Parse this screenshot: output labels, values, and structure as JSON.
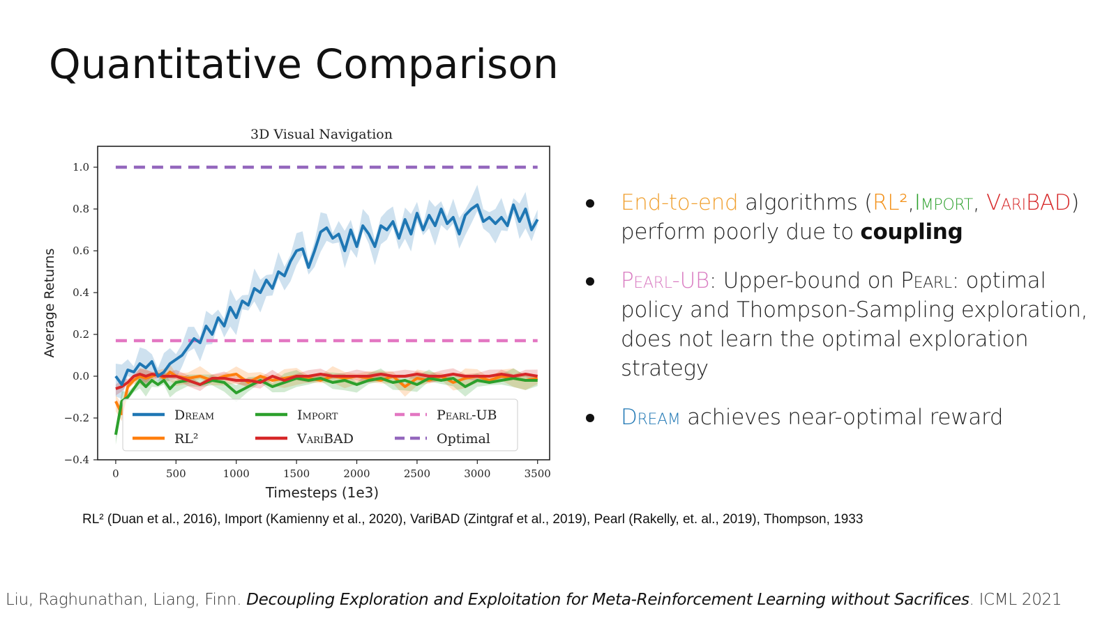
{
  "slide": {
    "title": "Quantitative Comparison"
  },
  "chart_data": {
    "type": "line",
    "title": "3D Visual Navigation",
    "xlabel": "Timesteps (1e3)",
    "ylabel": "Average Returns",
    "xlim": [
      -150,
      3600
    ],
    "ylim": [
      -0.4,
      1.1
    ],
    "xticks": [
      0,
      500,
      1000,
      1500,
      2000,
      2500,
      3000,
      3500
    ],
    "yticks": [
      -0.4,
      -0.2,
      0.0,
      0.2,
      0.4,
      0.6,
      0.8,
      1.0
    ],
    "ytick_labels": [
      "−0.4",
      "−0.2",
      "0.0",
      "0.2",
      "0.4",
      "0.6",
      "0.8",
      "1.0"
    ],
    "grid": false,
    "legend_placement": "lower-center",
    "series": [
      {
        "name": "Dream",
        "color": "#1f77b4",
        "style": "solid",
        "band": 0.06,
        "x": [
          0,
          50,
          100,
          150,
          200,
          250,
          300,
          350,
          400,
          450,
          500,
          550,
          600,
          650,
          700,
          750,
          800,
          850,
          900,
          950,
          1000,
          1050,
          1100,
          1150,
          1200,
          1250,
          1300,
          1350,
          1400,
          1450,
          1500,
          1550,
          1600,
          1650,
          1700,
          1750,
          1800,
          1850,
          1900,
          1950,
          2000,
          2050,
          2100,
          2150,
          2200,
          2250,
          2300,
          2350,
          2400,
          2450,
          2500,
          2550,
          2600,
          2650,
          2700,
          2750,
          2800,
          2850,
          2900,
          2950,
          3000,
          3050,
          3100,
          3150,
          3200,
          3250,
          3300,
          3350,
          3400,
          3450,
          3500
        ],
        "y": [
          0.0,
          -0.04,
          0.03,
          0.02,
          0.06,
          0.04,
          0.07,
          0.0,
          0.02,
          0.06,
          0.08,
          0.1,
          0.14,
          0.18,
          0.16,
          0.24,
          0.2,
          0.28,
          0.24,
          0.33,
          0.28,
          0.36,
          0.34,
          0.42,
          0.4,
          0.46,
          0.42,
          0.5,
          0.48,
          0.55,
          0.6,
          0.61,
          0.52,
          0.6,
          0.69,
          0.71,
          0.66,
          0.68,
          0.6,
          0.7,
          0.62,
          0.72,
          0.68,
          0.62,
          0.72,
          0.7,
          0.74,
          0.66,
          0.75,
          0.68,
          0.78,
          0.7,
          0.77,
          0.72,
          0.8,
          0.73,
          0.76,
          0.68,
          0.77,
          0.8,
          0.82,
          0.74,
          0.76,
          0.73,
          0.76,
          0.72,
          0.82,
          0.74,
          0.8,
          0.7,
          0.75
        ]
      },
      {
        "name": "RL²",
        "color": "#ff7f0e",
        "style": "solid",
        "band": 0.03,
        "x": [
          0,
          50,
          100,
          150,
          200,
          250,
          300,
          350,
          400,
          450,
          500,
          600,
          700,
          800,
          900,
          1000,
          1100,
          1200,
          1300,
          1400,
          1500,
          1600,
          1700,
          1800,
          1900,
          2000,
          2100,
          2200,
          2300,
          2400,
          2500,
          2600,
          2700,
          2800,
          2900,
          3000,
          3100,
          3200,
          3300,
          3400,
          3500
        ],
        "y": [
          -0.12,
          -0.18,
          -0.05,
          -0.02,
          0.0,
          -0.01,
          0.0,
          0.01,
          -0.01,
          0.02,
          0.0,
          -0.01,
          0.0,
          -0.02,
          0.0,
          0.01,
          -0.03,
          0.0,
          -0.02,
          -0.01,
          0.0,
          -0.01,
          -0.02,
          0.0,
          -0.01,
          0.0,
          -0.01,
          -0.02,
          0.0,
          -0.05,
          -0.01,
          -0.02,
          0.0,
          -0.03,
          -0.01,
          0.0,
          -0.02,
          0.0,
          -0.01,
          -0.02,
          -0.01
        ]
      },
      {
        "name": "Import",
        "color": "#2ca02c",
        "style": "solid",
        "band": 0.03,
        "x": [
          0,
          50,
          100,
          150,
          200,
          250,
          300,
          350,
          400,
          450,
          500,
          600,
          700,
          800,
          900,
          1000,
          1100,
          1200,
          1300,
          1400,
          1500,
          1600,
          1700,
          1800,
          1900,
          2000,
          2100,
          2200,
          2300,
          2400,
          2500,
          2600,
          2700,
          2800,
          2900,
          3000,
          3100,
          3200,
          3300,
          3400,
          3500
        ],
        "y": [
          -0.28,
          -0.12,
          -0.1,
          -0.06,
          -0.02,
          -0.05,
          -0.02,
          -0.04,
          -0.02,
          -0.06,
          -0.03,
          -0.02,
          -0.04,
          -0.02,
          -0.03,
          -0.08,
          -0.05,
          -0.02,
          -0.05,
          -0.03,
          -0.01,
          -0.02,
          -0.01,
          -0.03,
          -0.02,
          -0.04,
          -0.02,
          -0.01,
          -0.03,
          -0.02,
          -0.04,
          -0.01,
          -0.02,
          -0.01,
          -0.05,
          -0.02,
          -0.03,
          -0.02,
          -0.01,
          -0.02,
          -0.02
        ]
      },
      {
        "name": "VariBAD",
        "color": "#d62728",
        "style": "solid",
        "band": 0.02,
        "x": [
          0,
          50,
          100,
          150,
          200,
          250,
          300,
          400,
          500,
          600,
          700,
          800,
          900,
          1000,
          1100,
          1200,
          1300,
          1400,
          1500,
          1600,
          1700,
          1800,
          1900,
          2000,
          2100,
          2200,
          2300,
          2400,
          2500,
          2600,
          2700,
          2800,
          2900,
          3000,
          3100,
          3200,
          3300,
          3400,
          3500
        ],
        "y": [
          -0.06,
          -0.05,
          -0.03,
          0.0,
          0.01,
          0.0,
          0.01,
          0.0,
          0.0,
          -0.02,
          -0.04,
          -0.01,
          -0.01,
          -0.02,
          -0.02,
          -0.03,
          0.0,
          -0.02,
          0.0,
          0.0,
          0.01,
          0.0,
          0.0,
          0.0,
          0.0,
          0.01,
          0.0,
          0.0,
          0.01,
          0.0,
          0.0,
          0.01,
          0.0,
          0.0,
          0.0,
          0.01,
          0.0,
          0.01,
          0.0
        ]
      },
      {
        "name": "Pearl-UB",
        "color": "#e377c2",
        "style": "dashed",
        "band": 0,
        "x": [
          0,
          3500
        ],
        "y": [
          0.17,
          0.17
        ]
      },
      {
        "name": "Optimal",
        "color": "#9467bd",
        "style": "dashed",
        "band": 0,
        "x": [
          0,
          3500
        ],
        "y": [
          1.0,
          1.0
        ]
      }
    ]
  },
  "bullets": {
    "b1": {
      "part1": "End-to-end",
      "part1_color": "#f0a030",
      "part2": " algorithms (",
      "rl2": "RL²",
      "rl2_color": "#f39017",
      "comma1": ",",
      "import": "Import",
      "import_color": "#2ca02c",
      "comma2": ", ",
      "varibad": "VariBAD",
      "varibad_color": "#d62728",
      "part3": ")",
      "part4": "perform poorly due to ",
      "part5": "coupling"
    },
    "b2": {
      "part1": "Pearl-UB",
      "part1_color": "#d97bc1",
      "part2": ": Upper-bound on ",
      "pearl": "Pearl",
      "part3": ": optimal policy and Thompson-Sampling exploration, does not learn the optimal exploration strategy"
    },
    "b3": {
      "part1": "Dream",
      "part1_color": "#1f77b4",
      "part2": " achieves near-optimal reward"
    }
  },
  "references": "RL² (Duan et al., 2016), Import (Kamienny et al., 2020), VariBAD (Zintgraf et al., 2019), Pearl (Rakelly, et. al., 2019), Thompson, 1933",
  "footer": {
    "authors": "Liu, Raghunathan, Liang, Finn. ",
    "paper": "Decoupling Exploration and Exploitation for Meta-Reinforcement Learning without Sacrifices",
    "venue": ". ICML 2021"
  }
}
